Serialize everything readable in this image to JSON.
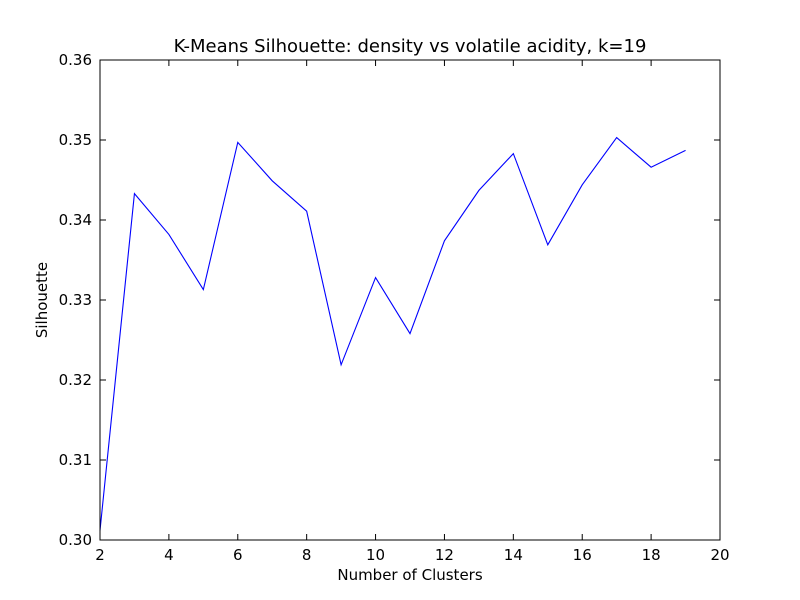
{
  "chart_data": {
    "type": "line",
    "title": "K-Means Silhouette: density vs volatile acidity, k=19",
    "xlabel": "Number of Clusters",
    "ylabel": "Silhouette",
    "xlim": [
      2,
      20
    ],
    "ylim": [
      0.3,
      0.36
    ],
    "xticks": [
      "2",
      "4",
      "6",
      "8",
      "10",
      "12",
      "14",
      "16",
      "18",
      "20"
    ],
    "yticks": [
      "0.30",
      "0.31",
      "0.32",
      "0.33",
      "0.34",
      "0.35",
      "0.36"
    ],
    "grid": false,
    "line_color": "#0000ff",
    "series": [
      {
        "x": [
          2,
          3,
          4,
          5,
          6,
          7,
          8,
          9,
          10,
          11,
          12,
          13,
          14,
          15,
          16,
          17,
          18,
          19
        ],
        "values": [
          0.3012,
          0.3433,
          0.3382,
          0.3313,
          0.3497,
          0.3449,
          0.3411,
          0.3219,
          0.3328,
          0.3258,
          0.3374,
          0.3437,
          0.3483,
          0.3369,
          0.3444,
          0.3503,
          0.3466,
          0.3487
        ]
      }
    ]
  }
}
